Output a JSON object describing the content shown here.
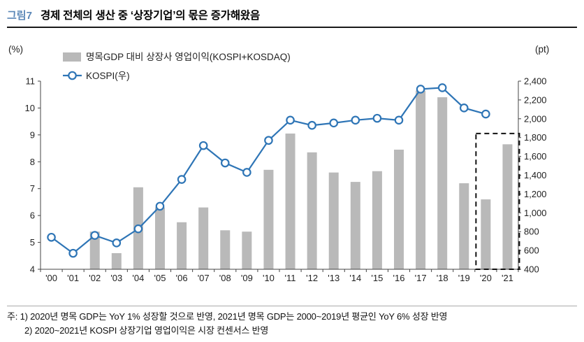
{
  "header": {
    "figure_label": "그림7",
    "title": "경제 전체의 생산 중 ‘상장기업’의 몫은 증가해왔음",
    "accent_color": "#5b87b7"
  },
  "chart_data": {
    "type": "bar+line",
    "categories": [
      "'00",
      "'01",
      "'02",
      "'03",
      "'04",
      "'05",
      "'06",
      "'07",
      "'08",
      "'09",
      "'10",
      "'11",
      "'12",
      "'13",
      "'14",
      "'15",
      "'16",
      "'17",
      "'18",
      "'19",
      "'20",
      "'21"
    ],
    "left_axis": {
      "unit": "(%)",
      "min": 4,
      "max": 11,
      "ticks": [
        4,
        5,
        6,
        7,
        8,
        9,
        10,
        11
      ]
    },
    "right_axis": {
      "unit": "(pt)",
      "min": 400,
      "max": 2400,
      "tick_step": 200,
      "ticks": [
        "400",
        "600",
        "800",
        "1,000",
        "1,200",
        "1,400",
        "1,600",
        "1,800",
        "2,000",
        "2,200",
        "2,400"
      ]
    },
    "series": [
      {
        "name": "명목GDP 대비 상장사 영업이익(KOSPI+KOSDAQ)",
        "type": "bar",
        "axis": "left",
        "color": "#b9b9b9",
        "values": [
          null,
          null,
          5.4,
          4.6,
          7.05,
          6.3,
          5.75,
          6.3,
          5.45,
          5.4,
          7.7,
          9.05,
          8.35,
          7.6,
          7.25,
          7.65,
          8.45,
          10.65,
          10.4,
          7.2,
          6.6,
          8.65
        ]
      },
      {
        "name": "KOSPI(우)",
        "type": "line",
        "axis": "right",
        "color": "#2e75b6",
        "values": [
          740,
          570,
          760,
          680,
          830,
          1070,
          1355,
          1715,
          1530,
          1430,
          1770,
          1985,
          1930,
          1955,
          1985,
          2005,
          1985,
          2315,
          2330,
          2115,
          2050,
          null
        ]
      }
    ],
    "highlight_box": {
      "from": "'20",
      "to": "'21",
      "top_value": 9.05,
      "style": "dashed"
    },
    "grid": "off",
    "legend_position": "top-left-inside"
  },
  "footnotes": {
    "line1": "주: 1) 2020년 명목 GDP는 YoY 1% 성장할 것으로 반영, 2021년 명목 GDP는 2000~2019년 평균인 YoY 6% 성장 반영",
    "line2": "2) 2020~2021년 KOSPI 상장기업 영업이익은 시장 컨센서스 반영"
  }
}
